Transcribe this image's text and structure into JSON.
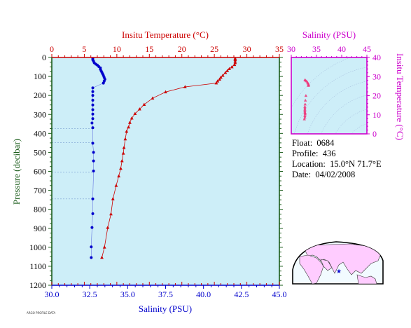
{
  "colors": {
    "temperature": "#cc0000",
    "salinity_main": "#0000cc",
    "salinity_ts": "#cc00cc",
    "plot_bg": "#cdeef8",
    "pressure_axis": "#1a5c1a",
    "ts_marker": "#ee3377",
    "land": "#ffccff"
  },
  "info": {
    "float_label": "Float:",
    "float_value": "0684",
    "profile_label": "Profile:",
    "profile_value": "436",
    "location_label": "Location:",
    "location_value": "15.0°N  71.7°E",
    "date_label": "Date:",
    "date_value": "04/02/2008"
  },
  "credit": "ARGO PROFILE DATA",
  "chart_data": [
    {
      "type": "line",
      "title": "",
      "top_axis_label": "Insitu Temperature (°C)",
      "bottom_axis_label": "Salinity (PSU)",
      "ylabel": "Pressure (decibar)",
      "temperature_range": [
        0,
        35
      ],
      "temperature_ticks": [
        "0",
        "5",
        "10",
        "15",
        "20",
        "25",
        "30",
        "35"
      ],
      "salinity_range": [
        30.0,
        45.0
      ],
      "salinity_ticks": [
        "30.0",
        "32.5",
        "35.0",
        "37.5",
        "40.0",
        "42.5",
        "45.0"
      ],
      "pressure_range": [
        0,
        1200
      ],
      "pressure_ticks": [
        "0",
        "100",
        "200",
        "300",
        "400",
        "500",
        "600",
        "700",
        "800",
        "900",
        "1000",
        "1100",
        "1200"
      ],
      "y_inverted": true,
      "series": [
        {
          "axis": "temperature",
          "marker": "triangle",
          "points": [
            [
              28.2,
              5
            ],
            [
              28.2,
              12
            ],
            [
              28.2,
              20
            ],
            [
              28.2,
              28
            ],
            [
              28.1,
              38
            ],
            [
              27.7,
              50
            ],
            [
              27.3,
              60
            ],
            [
              27.0,
              70
            ],
            [
              26.7,
              80
            ],
            [
              26.3,
              95
            ],
            [
              26.0,
              105
            ],
            [
              25.8,
              115
            ],
            [
              25.5,
              125
            ],
            [
              25.3,
              135
            ],
            [
              20.5,
              155
            ],
            [
              17.5,
              182
            ],
            [
              15.5,
              215
            ],
            [
              14.2,
              248
            ],
            [
              13.5,
              272
            ],
            [
              12.8,
              296
            ],
            [
              12.3,
              320
            ],
            [
              12.0,
              343
            ],
            [
              11.8,
              367
            ],
            [
              11.5,
              390
            ],
            [
              11.3,
              430
            ],
            [
              11.1,
              475
            ],
            [
              11.0,
              505
            ],
            [
              10.8,
              545
            ],
            [
              10.6,
              585
            ],
            [
              10.3,
              625
            ],
            [
              9.9,
              675
            ],
            [
              9.4,
              745
            ],
            [
              9.1,
              825
            ],
            [
              8.6,
              896
            ],
            [
              8.1,
              1000
            ],
            [
              7.7,
              1054
            ]
          ]
        },
        {
          "axis": "salinity",
          "marker": "circle",
          "points": [
            [
              32.7,
              5
            ],
            [
              32.7,
              12
            ],
            [
              32.75,
              20
            ],
            [
              32.8,
              28
            ],
            [
              32.9,
              35
            ],
            [
              33.0,
              40
            ],
            [
              33.1,
              48
            ],
            [
              33.2,
              55
            ],
            [
              33.2,
              62
            ],
            [
              33.25,
              70
            ],
            [
              33.3,
              78
            ],
            [
              33.35,
              86
            ],
            [
              33.4,
              95
            ],
            [
              33.45,
              105
            ],
            [
              33.5,
              115
            ],
            [
              33.45,
              125
            ],
            [
              33.4,
              135
            ],
            [
              32.7,
              160
            ],
            [
              32.7,
              180
            ],
            [
              32.7,
              200
            ],
            [
              32.7,
              225
            ],
            [
              32.7,
              250
            ],
            [
              32.7,
              275
            ],
            [
              32.7,
              298
            ],
            [
              32.7,
              322
            ],
            [
              32.65,
              345
            ],
            [
              32.7,
              370
            ],
            [
              32.7,
              452
            ],
            [
              32.75,
              500
            ],
            [
              32.75,
              545
            ],
            [
              32.75,
              598
            ],
            [
              32.7,
              745
            ],
            [
              32.7,
              823
            ],
            [
              32.65,
              896
            ],
            [
              32.6,
              998
            ],
            [
              32.6,
              1054
            ]
          ]
        }
      ]
    },
    {
      "type": "scatter",
      "xlabel": "Salinity (PSU)",
      "ylabel": "Insitu Temperature (°C)",
      "xlim": [
        30,
        45
      ],
      "ylim": [
        0,
        40
      ],
      "x_ticks": [
        "30",
        "35",
        "40",
        "45"
      ],
      "y_ticks": [
        "0",
        "10",
        "20",
        "30",
        "40"
      ],
      "points": [
        [
          32.7,
          28.2
        ],
        [
          32.8,
          28.0
        ],
        [
          33.0,
          27.6
        ],
        [
          33.2,
          27.0
        ],
        [
          33.3,
          26.5
        ],
        [
          33.4,
          26.0
        ],
        [
          33.45,
          25.5
        ],
        [
          33.4,
          25.2
        ],
        [
          32.9,
          20.0
        ],
        [
          32.8,
          17.5
        ],
        [
          32.75,
          15.5
        ],
        [
          32.7,
          14.2
        ],
        [
          32.7,
          13.5
        ],
        [
          32.7,
          12.8
        ],
        [
          32.7,
          12.0
        ],
        [
          32.7,
          11.3
        ],
        [
          32.75,
          10.8
        ],
        [
          32.75,
          10.3
        ],
        [
          32.7,
          9.4
        ],
        [
          32.7,
          8.6
        ],
        [
          32.6,
          7.7
        ]
      ]
    }
  ]
}
